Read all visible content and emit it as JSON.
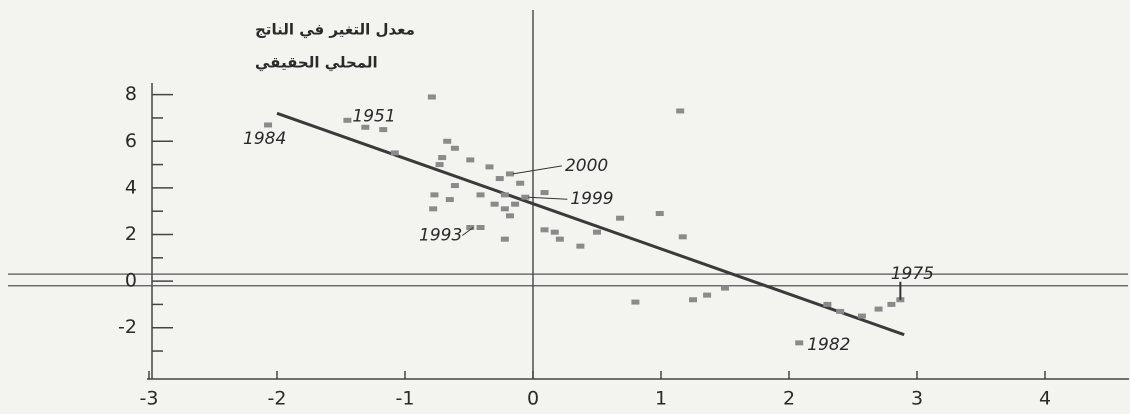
{
  "chart_data": {
    "type": "scatter",
    "y_label": [
      "معدل التغير في الناتج",
      "المحلي الحقيقي"
    ],
    "x": [
      -1.45,
      -2.07,
      -1.31,
      -1.17,
      -1.08,
      -0.79,
      -0.67,
      -0.61,
      -0.71,
      -0.73,
      -0.49,
      -0.34,
      -0.26,
      -0.18,
      -0.1,
      -0.61,
      -0.77,
      -0.65,
      -0.78,
      -0.41,
      -0.22,
      -0.06,
      0.09,
      -0.3,
      -0.22,
      -0.14,
      -0.18,
      -0.49,
      -0.41,
      -0.22,
      0.09,
      0.17,
      0.21,
      0.37,
      0.5,
      0.68,
      0.99,
      1.17,
      1.15,
      1.5,
      1.36,
      1.25,
      0.8,
      2.3,
      2.4,
      2.57,
      2.7,
      2.8,
      2.87,
      2.08
    ],
    "y": [
      6.9,
      6.7,
      6.6,
      6.5,
      5.5,
      7.9,
      6.0,
      5.7,
      5.3,
      5.0,
      5.2,
      4.9,
      4.4,
      4.6,
      4.2,
      4.1,
      3.7,
      3.5,
      3.1,
      3.7,
      3.7,
      3.6,
      3.8,
      3.3,
      3.1,
      3.3,
      2.8,
      2.3,
      2.3,
      1.8,
      2.2,
      2.1,
      1.8,
      1.5,
      2.1,
      2.7,
      2.9,
      1.9,
      7.3,
      -0.3,
      -0.6,
      -0.8,
      -0.9,
      -1.0,
      -1.3,
      -1.5,
      -1.2,
      -1.0,
      -0.8,
      -2.65
    ],
    "point_labels": [
      "1951",
      "1984",
      null,
      null,
      null,
      null,
      null,
      null,
      null,
      null,
      null,
      null,
      null,
      "2000",
      null,
      null,
      null,
      null,
      null,
      null,
      null,
      "1999",
      null,
      null,
      null,
      null,
      null,
      "1993",
      null,
      null,
      null,
      null,
      null,
      null,
      null,
      null,
      null,
      null,
      null,
      null,
      null,
      null,
      null,
      null,
      null,
      null,
      null,
      null,
      "1975",
      "1982"
    ],
    "color": "#8a8a8a",
    "trend_line": {
      "x": [
        -2,
        2.9
      ],
      "y": [
        7.2,
        -2.3
      ]
    },
    "reference_lines_y": [
      0.3,
      -0.2
    ],
    "reference_lines_x": [
      0
    ],
    "xlim": [
      -3,
      4.5
    ],
    "ylim": [
      -4.2,
      8.5
    ],
    "xticks": [
      -3,
      -2,
      -1,
      0,
      1,
      2,
      3,
      4
    ],
    "yticks": [
      -2,
      0,
      2,
      4,
      6,
      8
    ],
    "yminor_ticks": [
      -3,
      -1,
      1,
      3,
      5,
      7
    ]
  }
}
